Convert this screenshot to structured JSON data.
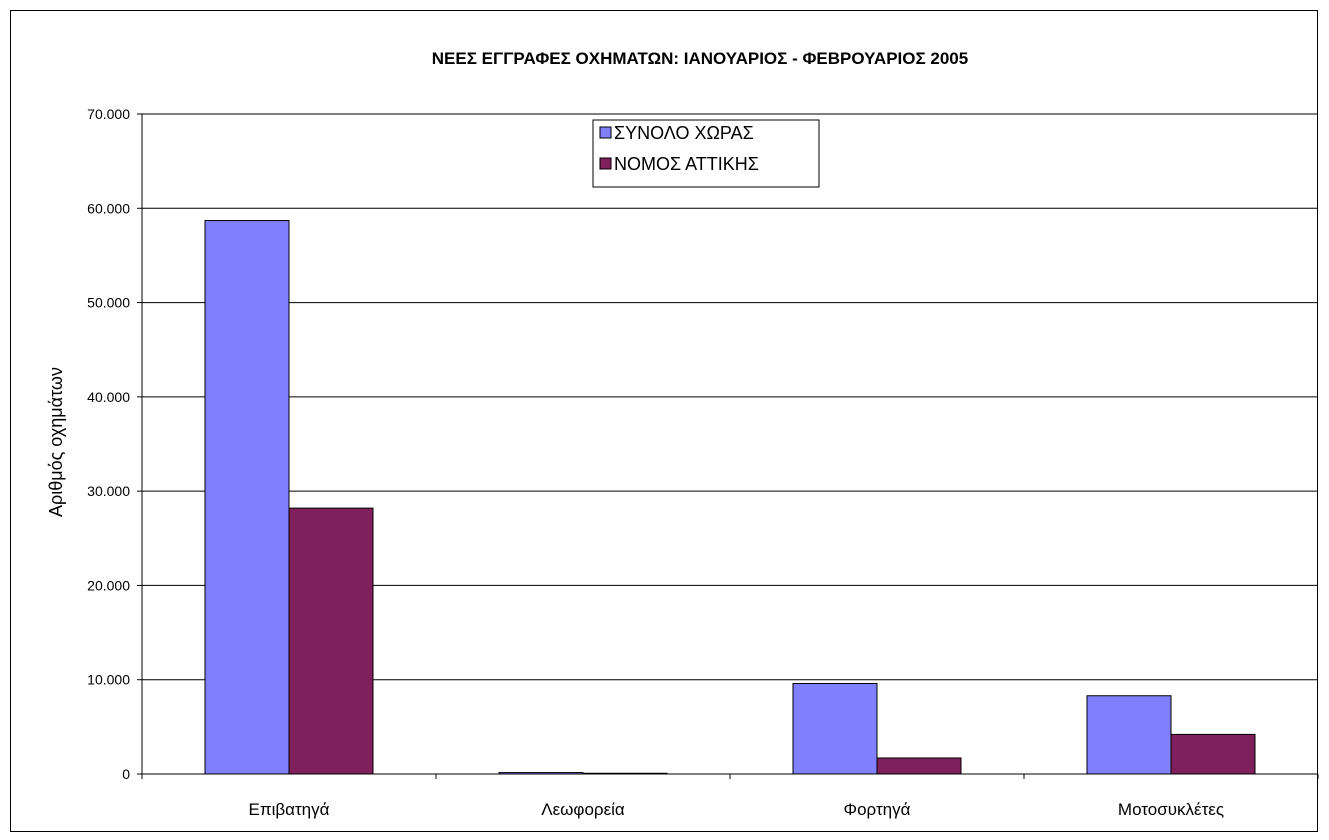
{
  "chart_data": {
    "type": "bar",
    "title": "ΝΕΕΣ ΕΓΓΡΑΦΕΣ ΟΧΗΜΑΤΩΝ:  ΙΑΝΟΥΑΡΙΟΣ - ΦΕΒΡΟΥΑΡΙΟΣ 2005",
    "xlabel": "",
    "ylabel": "Αριθμός οχημάτων",
    "categories": [
      "Επιβατηγά",
      "Λεωφορεία",
      "Φορτηγά",
      "Μοτοσυκλέτες"
    ],
    "series": [
      {
        "name": "ΣΥΝΟΛΟ ΧΩΡΑΣ",
        "color": "#8080ff",
        "values": [
          58700,
          150,
          9600,
          8300
        ]
      },
      {
        "name": "ΝΟΜΟΣ ΑΤΤΙΚΗΣ",
        "color": "#7f1f5b",
        "values": [
          28200,
          80,
          1700,
          4200
        ]
      }
    ],
    "ylim": [
      0,
      70000
    ],
    "yticks": [
      0,
      10000,
      20000,
      30000,
      40000,
      50000,
      60000,
      70000
    ],
    "ytick_labels": [
      "0",
      "10.000",
      "20.000",
      "30.000",
      "40.000",
      "50.000",
      "60.000",
      "70.000"
    ],
    "grid": true,
    "legend_position": "top-center"
  }
}
